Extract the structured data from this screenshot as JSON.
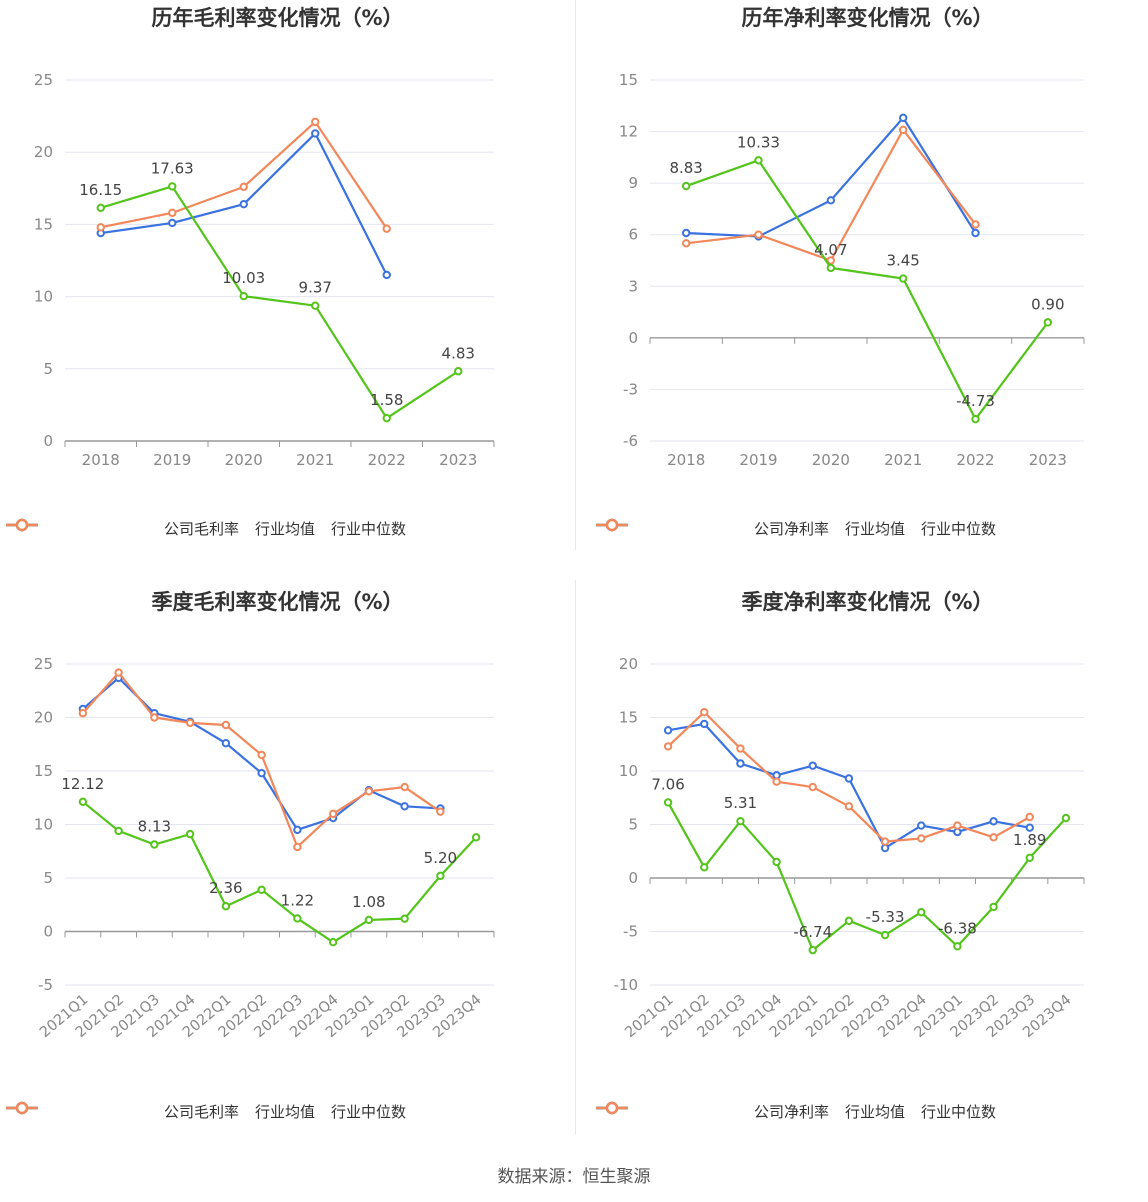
{
  "chart_data": [
    {
      "type": "line",
      "title": "历年毛利率变化情况（%）",
      "categories": [
        "2018",
        "2019",
        "2020",
        "2021",
        "2022",
        "2023"
      ],
      "ylim": [
        0,
        25
      ],
      "yticks": [
        0,
        5,
        10,
        15,
        20,
        25
      ],
      "series": [
        {
          "name": "公司毛利率",
          "color": "#52c41a",
          "values": [
            16.15,
            17.63,
            10.03,
            9.37,
            1.58,
            4.83
          ],
          "labels": [
            "16.15",
            "17.63",
            "10.03",
            "9.37",
            "1.58",
            "4.83"
          ]
        },
        {
          "name": "行业均值",
          "color": "#3a72e0",
          "values": [
            14.4,
            15.1,
            16.4,
            21.3,
            11.5,
            null
          ]
        },
        {
          "name": "行业中位数",
          "color": "#f2875a",
          "values": [
            14.8,
            15.8,
            17.6,
            22.1,
            14.7,
            null
          ]
        }
      ]
    },
    {
      "type": "line",
      "title": "历年净利率变化情况（%）",
      "categories": [
        "2018",
        "2019",
        "2020",
        "2021",
        "2022",
        "2023"
      ],
      "ylim": [
        -6,
        15
      ],
      "yticks": [
        -6,
        -3,
        0,
        3,
        6,
        9,
        12,
        15
      ],
      "series": [
        {
          "name": "公司净利率",
          "color": "#52c41a",
          "values": [
            8.83,
            10.33,
            4.07,
            3.45,
            -4.73,
            0.9
          ],
          "labels": [
            "8.83",
            "10.33",
            "4.07",
            "3.45",
            "-4.73",
            "0.90"
          ]
        },
        {
          "name": "行业均值",
          "color": "#3a72e0",
          "values": [
            6.1,
            5.9,
            8.0,
            12.8,
            6.1,
            null
          ]
        },
        {
          "name": "行业中位数",
          "color": "#f2875a",
          "values": [
            5.5,
            6.0,
            4.5,
            12.1,
            6.6,
            null
          ]
        }
      ]
    },
    {
      "type": "line",
      "title": "季度毛利率变化情况（%）",
      "categories": [
        "2021Q1",
        "2021Q2",
        "2021Q3",
        "2021Q4",
        "2022Q1",
        "2022Q2",
        "2022Q3",
        "2022Q4",
        "2023Q1",
        "2023Q2",
        "2023Q3",
        "2023Q4"
      ],
      "ylim": [
        -5,
        25
      ],
      "yticks": [
        -5,
        0,
        5,
        10,
        15,
        20,
        25
      ],
      "series": [
        {
          "name": "公司毛利率",
          "color": "#52c41a",
          "values": [
            12.12,
            9.4,
            8.13,
            9.1,
            2.36,
            3.9,
            1.22,
            -1.0,
            1.08,
            1.2,
            5.2,
            8.8
          ],
          "labels": [
            "12.12",
            "",
            "8.13",
            "",
            "2.36",
            "",
            "1.22",
            "",
            "1.08",
            "",
            "5.20",
            ""
          ]
        },
        {
          "name": "行业均值",
          "color": "#3a72e0",
          "values": [
            20.8,
            23.7,
            20.4,
            19.6,
            17.6,
            14.8,
            9.5,
            10.6,
            13.2,
            11.7,
            11.5,
            null
          ]
        },
        {
          "name": "行业中位数",
          "color": "#f2875a",
          "values": [
            20.4,
            24.2,
            20.0,
            19.5,
            19.3,
            16.5,
            7.9,
            11.0,
            13.1,
            13.5,
            11.2,
            null
          ]
        }
      ]
    },
    {
      "type": "line",
      "title": "季度净利率变化情况（%）",
      "categories": [
        "2021Q1",
        "2021Q2",
        "2021Q3",
        "2021Q4",
        "2022Q1",
        "2022Q2",
        "2022Q3",
        "2022Q4",
        "2023Q1",
        "2023Q2",
        "2023Q3",
        "2023Q4"
      ],
      "ylim": [
        -10,
        20
      ],
      "yticks": [
        -10,
        -5,
        0,
        5,
        10,
        15,
        20
      ],
      "series": [
        {
          "name": "公司净利率",
          "color": "#52c41a",
          "values": [
            7.06,
            1.0,
            5.31,
            1.5,
            -6.74,
            -4.0,
            -5.33,
            -3.2,
            -6.38,
            -2.7,
            1.89,
            5.6
          ],
          "labels": [
            "7.06",
            "",
            "5.31",
            "",
            "-6.74",
            "",
            "-5.33",
            "",
            "-6.38",
            "",
            "1.89",
            ""
          ]
        },
        {
          "name": "行业均值",
          "color": "#3a72e0",
          "values": [
            13.8,
            14.4,
            10.7,
            9.6,
            10.5,
            9.3,
            2.8,
            4.9,
            4.3,
            5.3,
            4.7,
            null
          ]
        },
        {
          "name": "行业中位数",
          "color": "#f2875a",
          "values": [
            12.3,
            15.5,
            12.1,
            9.0,
            8.5,
            6.7,
            3.4,
            3.7,
            4.9,
            3.8,
            5.7,
            null
          ]
        }
      ]
    }
  ],
  "source": "数据来源：恒生聚源"
}
